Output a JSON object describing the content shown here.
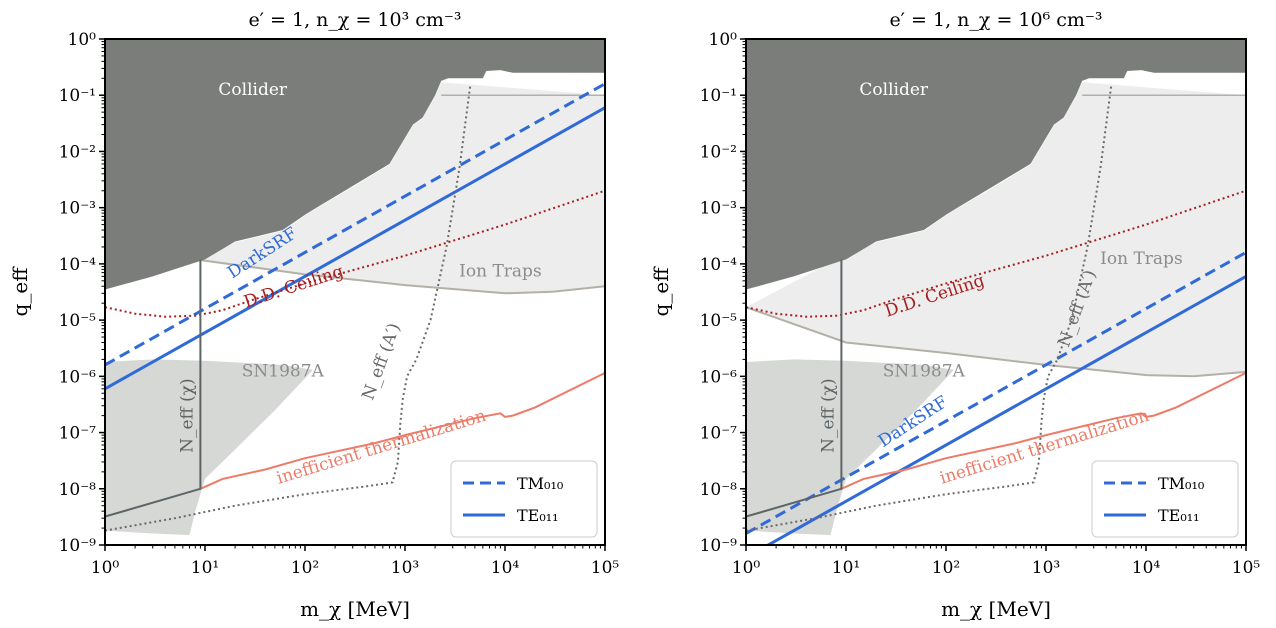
{
  "colors": {
    "collider": "#7b7d7a",
    "ion_traps": "#ecedec",
    "ion_traps_edge": "#b4b0a8",
    "sn1987a": "#d5d8d5",
    "darksrf": "#2f6ad8",
    "ceiling": "#a81e1e",
    "thermalization": "#ee7b68",
    "neff": "#6a6a6a",
    "neff_chi": "#5d6466"
  },
  "chart_data": [
    {
      "type": "line",
      "title": "e′ = 1,  n_χ = 10³ cm⁻³",
      "xlabel": "m_χ [MeV]",
      "ylabel": "q_eff",
      "xscale": "log",
      "yscale": "log",
      "xlim": [
        1,
        100000
      ],
      "ylim": [
        1e-09,
        1
      ],
      "xticks": [
        "10⁰",
        "10¹",
        "10²",
        "10³",
        "10⁴",
        "10⁵"
      ],
      "yticks": [
        "10⁻⁹",
        "10⁻⁸",
        "10⁻⁷",
        "10⁻⁶",
        "10⁻⁵",
        "10⁻⁴",
        "10⁻³",
        "10⁻²",
        "10⁻¹",
        "10⁰"
      ],
      "region_labels": {
        "collider": "Collider",
        "ion_traps": "Ion Traps",
        "sn1987a": "SN1987A",
        "neff_chi": "N_eff (χ)",
        "neff_ap": "N_eff (A′)",
        "ceiling": "D.D. Ceiling",
        "darksrf": "DarkSRF",
        "thermalization": "inefficient thermalization"
      },
      "legend": {
        "position": "lower right",
        "entries": [
          "TM₀₁₀",
          "TE₀₁₁"
        ]
      },
      "series": [
        {
          "name": "TM₀₁₀",
          "style": "dashed",
          "x": [
            1,
            100000
          ],
          "y": [
            1.6e-06,
            0.16
          ]
        },
        {
          "name": "TE₀₁₁",
          "style": "solid",
          "x": [
            1,
            100000
          ],
          "y": [
            6e-07,
            0.06
          ]
        },
        {
          "key": "ceiling",
          "x": [
            1,
            2,
            4,
            8,
            15,
            30,
            100,
            1000,
            10000,
            100000
          ],
          "y": [
            1.7e-05,
            1.3e-05,
            1.15e-05,
            1.2e-05,
            1.5e-05,
            2.3e-05,
            4.5e-05,
            0.00014,
            0.0005,
            0.002
          ]
        },
        {
          "key": "thermalization",
          "x": [
            9,
            15,
            40,
            100,
            500,
            1000,
            5000,
            9000,
            10000,
            12000,
            20000,
            100000
          ],
          "y": [
            1e-08,
            1.5e-08,
            2.2e-08,
            3.5e-08,
            6.5e-08,
            9e-08,
            1.8e-07,
            2.2e-07,
            1.9e-07,
            2e-07,
            2.8e-07,
            1.15e-06
          ]
        },
        {
          "key": "neff_ap",
          "x": [
            1,
            5,
            20,
            100,
            400,
            750,
            850,
            900,
            950,
            1050,
            1300,
            1800,
            2600,
            3500,
            4500
          ],
          "y": [
            1.8e-09,
            3e-09,
            5e-09,
            8e-09,
            1.1e-08,
            1.3e-08,
            3e-08,
            1.5e-07,
            4e-07,
            1e-06,
            2e-06,
            1e-05,
            0.0002,
            0.005,
            0.15
          ]
        },
        {
          "key": "neff_chi",
          "x": [
            1,
            9,
            9
          ],
          "y": [
            3.2e-09,
            1e-08,
            0.00012
          ]
        }
      ]
    },
    {
      "type": "line",
      "title": "e′ = 1,  n_χ = 10⁶ cm⁻³",
      "xlabel": "m_χ [MeV]",
      "ylabel": "q_eff",
      "xscale": "log",
      "yscale": "log",
      "xlim": [
        1,
        100000
      ],
      "ylim": [
        1e-09,
        1
      ],
      "xticks": [
        "10⁰",
        "10¹",
        "10²",
        "10³",
        "10⁴",
        "10⁵"
      ],
      "yticks": [
        "10⁻⁹",
        "10⁻⁸",
        "10⁻⁷",
        "10⁻⁶",
        "10⁻⁵",
        "10⁻⁴",
        "10⁻³",
        "10⁻²",
        "10⁻¹",
        "10⁰"
      ],
      "region_labels": {
        "collider": "Collider",
        "ion_traps": "Ion Traps",
        "sn1987a": "SN1987A",
        "neff_chi": "N_eff (χ)",
        "neff_ap": "N_eff (A′)",
        "ceiling": "D.D. Ceiling",
        "darksrf": "DarkSRF",
        "thermalization": "inefficient thermalization"
      },
      "legend": {
        "position": "lower right",
        "entries": [
          "TM₀₁₀",
          "TE₀₁₁"
        ]
      },
      "series": [
        {
          "name": "TM₀₁₀",
          "style": "dashed",
          "x": [
            1,
            100000
          ],
          "y": [
            1.6e-09,
            0.00016
          ]
        },
        {
          "name": "TE₀₁₁",
          "style": "solid",
          "x": [
            1,
            100000
          ],
          "y": [
            6e-10,
            6e-05
          ]
        },
        {
          "key": "ceiling",
          "x": [
            1,
            2,
            4,
            8,
            15,
            30,
            100,
            1000,
            10000,
            100000
          ],
          "y": [
            1.7e-05,
            1.3e-05,
            1.15e-05,
            1.2e-05,
            1.5e-05,
            2.3e-05,
            4.5e-05,
            0.00014,
            0.0005,
            0.002
          ]
        },
        {
          "key": "thermalization",
          "x": [
            9,
            15,
            40,
            100,
            500,
            1000,
            5000,
            9000,
            10000,
            12000,
            20000,
            100000
          ],
          "y": [
            1e-08,
            1.5e-08,
            2.2e-08,
            3.5e-08,
            6.5e-08,
            9e-08,
            1.8e-07,
            2.2e-07,
            1.9e-07,
            2e-07,
            2.8e-07,
            1.15e-06
          ]
        },
        {
          "key": "neff_ap",
          "x": [
            1,
            5,
            20,
            100,
            400,
            750,
            850,
            900,
            950,
            1050,
            1300,
            1800,
            2600,
            3500,
            4500
          ],
          "y": [
            1.8e-09,
            3e-09,
            5e-09,
            8e-09,
            1.1e-08,
            1.3e-08,
            3e-08,
            1.5e-07,
            4e-07,
            1e-06,
            2e-06,
            1e-05,
            0.0002,
            0.005,
            0.15
          ]
        },
        {
          "key": "neff_chi",
          "x": [
            1,
            9,
            9
          ],
          "y": [
            3.2e-09,
            1e-08,
            0.00012
          ]
        }
      ]
    }
  ]
}
